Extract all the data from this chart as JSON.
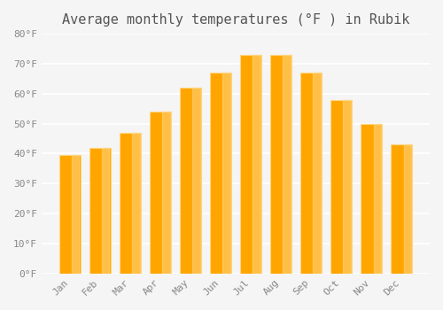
{
  "title": "Average monthly temperatures (°F ) in Rubik",
  "months": [
    "Jan",
    "Feb",
    "Mar",
    "Apr",
    "May",
    "Jun",
    "Jul",
    "Aug",
    "Sep",
    "Oct",
    "Nov",
    "Dec"
  ],
  "values": [
    39.5,
    42,
    47,
    54,
    62,
    67,
    73,
    73,
    67,
    58,
    50,
    43
  ],
  "bar_color": "#FFA500",
  "bar_edge_color": "#FFD580",
  "ylim": [
    0,
    80
  ],
  "yticks": [
    0,
    10,
    20,
    30,
    40,
    50,
    60,
    70,
    80
  ],
  "ytick_labels": [
    "0°F",
    "10°F",
    "20°F",
    "30°F",
    "40°F",
    "50°F",
    "60°F",
    "70°F",
    "80°F"
  ],
  "background_color": "#f5f5f5",
  "grid_color": "#ffffff",
  "title_fontsize": 11,
  "tick_fontsize": 8,
  "font_family": "monospace"
}
